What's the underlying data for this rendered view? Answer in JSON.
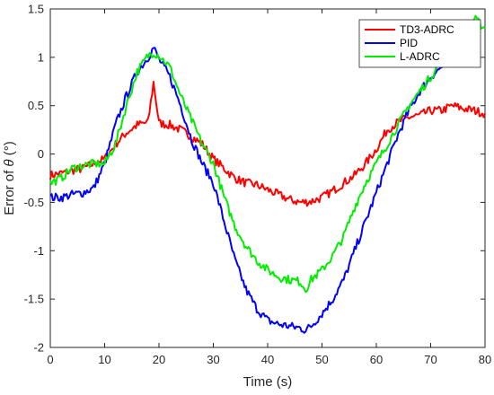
{
  "chart_data": {
    "type": "line",
    "title": "",
    "xlabel": "Time (s)",
    "ylabel_prefix": "Error of ",
    "ylabel_symbol": "θ",
    "ylabel_suffix": " (°)",
    "xlim": [
      0,
      80
    ],
    "ylim": [
      -2,
      1.5
    ],
    "xticks": [
      0,
      10,
      20,
      30,
      40,
      50,
      60,
      70,
      80
    ],
    "yticks": [
      -2,
      -1.5,
      -1,
      -0.5,
      0,
      0.5,
      1,
      1.5
    ],
    "grid": false,
    "legend_position": "top-right",
    "series": [
      {
        "name": "TD3-ADRC",
        "color": "#ff0000",
        "x": [
          0,
          2,
          4,
          6,
          8,
          10,
          12,
          14,
          16,
          18,
          19,
          20,
          22,
          24,
          26,
          28,
          30,
          32,
          34,
          36,
          38,
          40,
          42,
          44,
          46,
          48,
          50,
          52,
          54,
          56,
          58,
          60,
          62,
          64,
          66,
          68,
          70,
          72,
          74,
          76,
          78,
          80
        ],
        "y": [
          -0.22,
          -0.2,
          -0.17,
          -0.15,
          -0.1,
          -0.05,
          0.1,
          0.22,
          0.3,
          0.33,
          0.74,
          0.32,
          0.3,
          0.25,
          0.18,
          0.1,
          -0.05,
          -0.15,
          -0.25,
          -0.3,
          -0.32,
          -0.37,
          -0.42,
          -0.47,
          -0.5,
          -0.49,
          -0.45,
          -0.38,
          -0.3,
          -0.22,
          -0.1,
          0.05,
          0.25,
          0.33,
          0.38,
          0.4,
          0.45,
          0.45,
          0.5,
          0.47,
          0.45,
          0.42
        ]
      },
      {
        "name": "PID",
        "color": "#0000ff",
        "x": [
          0,
          2,
          4,
          6,
          8,
          10,
          11,
          12,
          14,
          16,
          18,
          19,
          20,
          22,
          24,
          26,
          28,
          30,
          32,
          34,
          36,
          38,
          40,
          42,
          44,
          46,
          47,
          48,
          50,
          52,
          54,
          56,
          58,
          60,
          62,
          64,
          66,
          68,
          70,
          72,
          74,
          76,
          77
        ],
        "y": [
          -0.45,
          -0.45,
          -0.42,
          -0.4,
          -0.35,
          -0.1,
          0.1,
          0.3,
          0.6,
          0.85,
          1.0,
          1.1,
          0.98,
          0.8,
          0.5,
          0.15,
          -0.1,
          -0.3,
          -0.7,
          -1.1,
          -1.4,
          -1.6,
          -1.72,
          -1.76,
          -1.78,
          -1.8,
          -1.82,
          -1.78,
          -1.65,
          -1.5,
          -1.3,
          -1.0,
          -0.7,
          -0.4,
          -0.1,
          0.2,
          0.45,
          0.65,
          0.8,
          0.9,
          0.95,
          0.97,
          1.05
        ]
      },
      {
        "name": "L-ADRC",
        "color": "#00ee00",
        "x": [
          0,
          2,
          4,
          6,
          8,
          10,
          12,
          14,
          16,
          18,
          19,
          20,
          22,
          24,
          26,
          28,
          30,
          32,
          34,
          36,
          38,
          40,
          42,
          44,
          46,
          47,
          48,
          50,
          52,
          54,
          56,
          58,
          60,
          62,
          64,
          66,
          68,
          70,
          72,
          74,
          76,
          78,
          80
        ],
        "y": [
          -0.3,
          -0.25,
          -0.15,
          -0.12,
          -0.1,
          -0.1,
          0.1,
          0.5,
          0.85,
          1.02,
          1.05,
          1.02,
          0.9,
          0.6,
          0.35,
          0.1,
          -0.1,
          -0.45,
          -0.75,
          -0.95,
          -1.1,
          -1.2,
          -1.27,
          -1.3,
          -1.32,
          -1.4,
          -1.3,
          -1.2,
          -1.05,
          -0.85,
          -0.55,
          -0.3,
          -0.1,
          0.1,
          0.3,
          0.5,
          0.65,
          0.8,
          0.95,
          1.1,
          1.25,
          1.4,
          1.3
        ]
      }
    ]
  }
}
